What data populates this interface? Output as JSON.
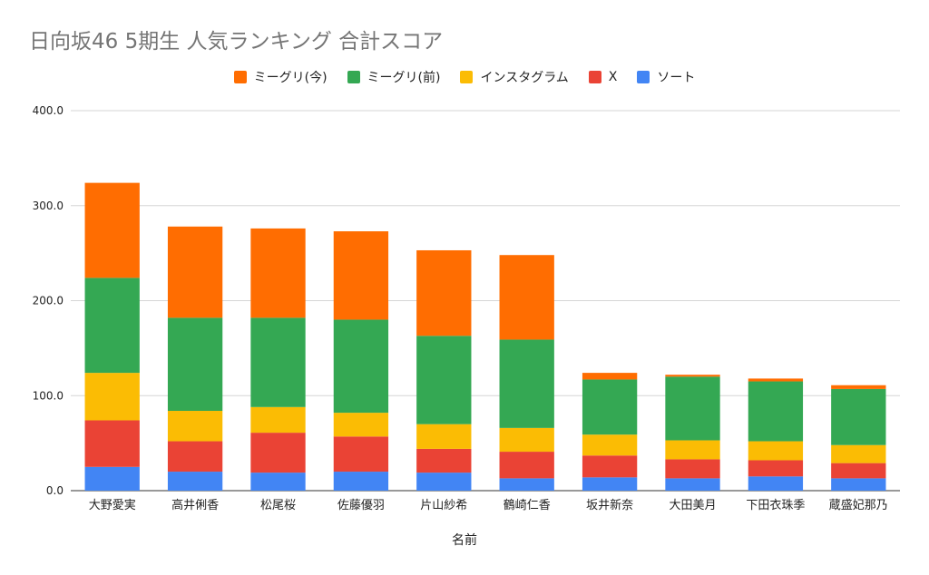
{
  "chart_data": {
    "type": "bar",
    "stacked": true,
    "title": "日向坂46 5期生 人気ランキング 合計スコア",
    "xlabel": "名前",
    "ylabel": "",
    "ylim": [
      0,
      400
    ],
    "yticks": [
      "0.0",
      "100.0",
      "200.0",
      "300.0",
      "400.0"
    ],
    "grid": true,
    "legend_position": "top",
    "categories": [
      "大野愛実",
      "高井俐香",
      "松尾桜",
      "佐藤優羽",
      "片山紗希",
      "鶴崎仁香",
      "坂井新奈",
      "大田美月",
      "下田衣珠季",
      "蔵盛妃那乃"
    ],
    "series": [
      {
        "name": "ソート",
        "color": "#4285F4",
        "values": [
          25,
          20,
          19,
          20,
          19,
          13,
          14,
          13,
          15,
          13
        ]
      },
      {
        "name": "X",
        "color": "#EA4335",
        "values": [
          49,
          32,
          42,
          37,
          25,
          28,
          23,
          20,
          17,
          16
        ]
      },
      {
        "name": "インスタグラム",
        "color": "#FBBC04",
        "values": [
          50,
          32,
          27,
          25,
          26,
          25,
          22,
          20,
          20,
          19
        ]
      },
      {
        "name": "ミーグリ(前)",
        "color": "#34A853",
        "values": [
          100,
          98,
          94,
          98,
          93,
          93,
          58,
          67,
          63,
          59
        ]
      },
      {
        "name": "ミーグリ(今)",
        "color": "#FF6D01",
        "values": [
          100,
          96,
          94,
          93,
          90,
          89,
          7,
          2,
          3,
          4
        ]
      }
    ],
    "legend_order": [
      "ミーグリ(今)",
      "ミーグリ(前)",
      "インスタグラム",
      "X",
      "ソート"
    ]
  }
}
